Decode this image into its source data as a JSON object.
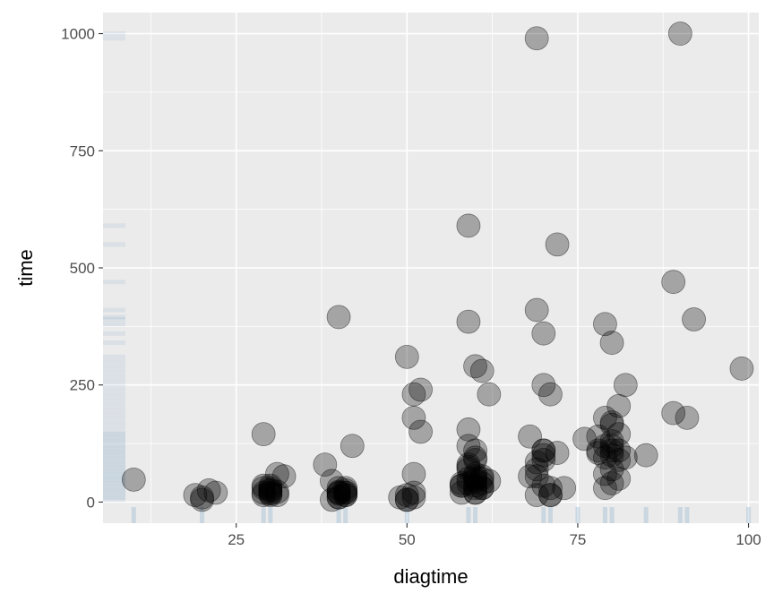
{
  "chart_data": {
    "type": "scatter",
    "xlabel": "diagtime",
    "ylabel": "time",
    "xlim": [
      5.5,
      101.5
    ],
    "ylim": [
      -45,
      1045
    ],
    "x_ticks": [
      25,
      50,
      75,
      100
    ],
    "x_tick_labels": [
      "25",
      "50",
      "75",
      "100"
    ],
    "y_ticks": [
      0,
      250,
      500,
      750,
      1000
    ],
    "y_tick_labels": [
      "0",
      "250",
      "500",
      "750",
      "1000"
    ],
    "x_minor_ticks": [
      12.5,
      37.5,
      62.5,
      87.5
    ],
    "y_minor_ticks": [
      125,
      375,
      625,
      875
    ],
    "grid": true,
    "colors": {
      "panel": "#ebebeb",
      "grid": "#ffffff",
      "point_fill": "#000000",
      "point_alpha": 0.3,
      "rug": "#4682b4"
    },
    "points": {
      "x": [
        10,
        19,
        20,
        21,
        22,
        29,
        29,
        30,
        30,
        31,
        32,
        38,
        39,
        40,
        40,
        40,
        41,
        41,
        42,
        50,
        50,
        51,
        51,
        51,
        52,
        52,
        59,
        59,
        60,
        60,
        60,
        60,
        61,
        61,
        62,
        69,
        69,
        70,
        70,
        71,
        71,
        72,
        79,
        79,
        80,
        80,
        80,
        81,
        81,
        82,
        89,
        89,
        90,
        91,
        92,
        99,
        20,
        29,
        29,
        30,
        30,
        30,
        31,
        39,
        40,
        40,
        41,
        41,
        49,
        50,
        50,
        51,
        51,
        58,
        58,
        59,
        59,
        59,
        60,
        60,
        60,
        61,
        62,
        68,
        68,
        69,
        69,
        70,
        70,
        71,
        72,
        73,
        76,
        78,
        78,
        79,
        80,
        80,
        80,
        81,
        81,
        82,
        85,
        29,
        30,
        30,
        31,
        40,
        40,
        41,
        41,
        59,
        59,
        60,
        60,
        61,
        61,
        69,
        69,
        70,
        70,
        71,
        78,
        79,
        79,
        80,
        80,
        81,
        80,
        58,
        60,
        61,
        59,
        60,
        58,
        70,
        79,
        59,
        60
      ],
      "y": [
        48,
        15,
        5,
        25,
        20,
        35,
        145,
        20,
        30,
        60,
        55,
        80,
        45,
        395,
        20,
        10,
        25,
        30,
        120,
        5,
        310,
        230,
        180,
        60,
        240,
        150,
        590,
        385,
        20,
        90,
        45,
        290,
        280,
        30,
        230,
        990,
        410,
        250,
        360,
        230,
        15,
        550,
        30,
        380,
        110,
        170,
        340,
        205,
        110,
        250,
        470,
        190,
        1000,
        180,
        390,
        285,
        10,
        15,
        30,
        25,
        35,
        15,
        15,
        5,
        10,
        30,
        20,
        15,
        10,
        5,
        15,
        10,
        20,
        35,
        20,
        75,
        120,
        155,
        30,
        110,
        95,
        30,
        45,
        55,
        140,
        55,
        70,
        35,
        100,
        30,
        105,
        30,
        135,
        140,
        105,
        120,
        40,
        165,
        70,
        90,
        145,
        95,
        100,
        20,
        18,
        25,
        22,
        18,
        22,
        15,
        20,
        50,
        40,
        50,
        60,
        40,
        55,
        85,
        15,
        90,
        110,
        15,
        110,
        180,
        95,
        100,
        120,
        50,
        130,
        35,
        20,
        50,
        70,
        35,
        40,
        110,
        60,
        80,
        55
      ]
    },
    "rug_x": [
      20,
      30,
      40,
      50,
      60,
      70,
      80,
      90,
      100,
      85,
      75,
      10,
      29,
      41,
      59,
      71,
      79,
      91
    ],
    "rug_y": [
      5,
      10,
      15,
      20,
      25,
      30,
      35,
      40,
      45,
      50,
      55,
      60,
      65,
      70,
      75,
      80,
      85,
      90,
      95,
      100,
      105,
      110,
      115,
      120,
      125,
      130,
      135,
      140,
      145,
      150,
      160,
      170,
      180,
      190,
      200,
      210,
      220,
      230,
      240,
      250,
      260,
      270,
      280,
      290,
      300,
      310,
      340,
      360,
      380,
      390,
      395,
      410,
      470,
      550,
      590,
      990,
      1000
    ]
  }
}
